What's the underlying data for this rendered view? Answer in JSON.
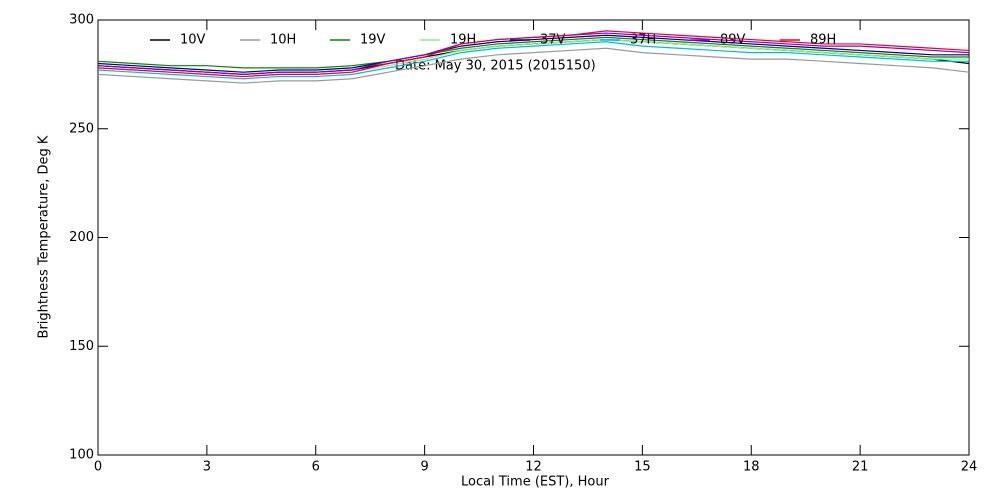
{
  "chart_data": {
    "type": "line",
    "x_label": "Local Time (EST), Hour",
    "y_label": "Brightness Temperature, Deg K",
    "annotation": "Date: May 30, 2015 (2015150)",
    "x": [
      0,
      1,
      2,
      3,
      4,
      5,
      6,
      7,
      8,
      9,
      10,
      11,
      12,
      13,
      14,
      15,
      16,
      17,
      18,
      19,
      20,
      21,
      22,
      23,
      24
    ],
    "xlim": [
      0,
      24
    ],
    "xticks": [
      0,
      3,
      6,
      9,
      12,
      15,
      18,
      21,
      24
    ],
    "ylim": [
      100,
      300
    ],
    "yticks": [
      100,
      150,
      200,
      250,
      300
    ],
    "series": [
      {
        "name": "10V",
        "color": "#000000",
        "values": [
          279,
          278,
          277,
          276,
          275,
          276,
          276,
          277,
          280,
          283,
          286,
          288,
          289,
          290,
          291,
          290,
          289,
          288,
          287,
          286,
          285,
          284,
          283,
          282,
          280
        ]
      },
      {
        "name": "10H",
        "color": "#999999",
        "values": [
          275,
          274,
          273,
          272,
          271,
          272,
          272,
          273,
          276,
          279,
          282,
          284,
          285,
          286,
          287,
          285,
          284,
          283,
          282,
          282,
          281,
          280,
          279,
          278,
          276
        ]
      },
      {
        "name": "19V",
        "color": "#008800",
        "values": [
          281,
          280,
          279,
          279,
          278,
          278,
          278,
          279,
          281,
          284,
          287,
          289,
          290,
          291,
          292,
          291,
          290,
          289,
          288,
          287,
          286,
          285,
          284,
          283,
          283
        ]
      },
      {
        "name": "19H",
        "color": "#88ee88",
        "values": [
          278,
          277,
          276,
          275,
          274,
          275,
          275,
          276,
          279,
          282,
          286,
          288,
          289,
          290,
          291,
          290,
          289,
          288,
          287,
          286,
          285,
          284,
          283,
          282,
          282
        ]
      },
      {
        "name": "37V",
        "color": "#000088",
        "values": [
          280,
          279,
          278,
          277,
          276,
          277,
          277,
          278,
          281,
          284,
          288,
          290,
          291,
          292,
          293,
          292,
          291,
          290,
          289,
          288,
          287,
          286,
          285,
          284,
          284
        ]
      },
      {
        "name": "37H",
        "color": "#00bbdd",
        "values": [
          277,
          276,
          275,
          274,
          273,
          274,
          274,
          275,
          278,
          281,
          285,
          287,
          288,
          289,
          290,
          288,
          287,
          286,
          285,
          285,
          284,
          283,
          282,
          281,
          281
        ]
      },
      {
        "name": "89V",
        "color": "#8800cc",
        "values": [
          279,
          278,
          277,
          276,
          275,
          276,
          276,
          277,
          281,
          284,
          289,
          291,
          292,
          293,
          294,
          293,
          292,
          291,
          290,
          289,
          288,
          288,
          287,
          286,
          285
        ]
      },
      {
        "name": "89H",
        "color": "#ee0033",
        "values": [
          278,
          277,
          276,
          275,
          274,
          275,
          275,
          276,
          280,
          283,
          289,
          291,
          292,
          293,
          295,
          294,
          293,
          292,
          291,
          290,
          289,
          289,
          288,
          287,
          286
        ]
      }
    ]
  }
}
